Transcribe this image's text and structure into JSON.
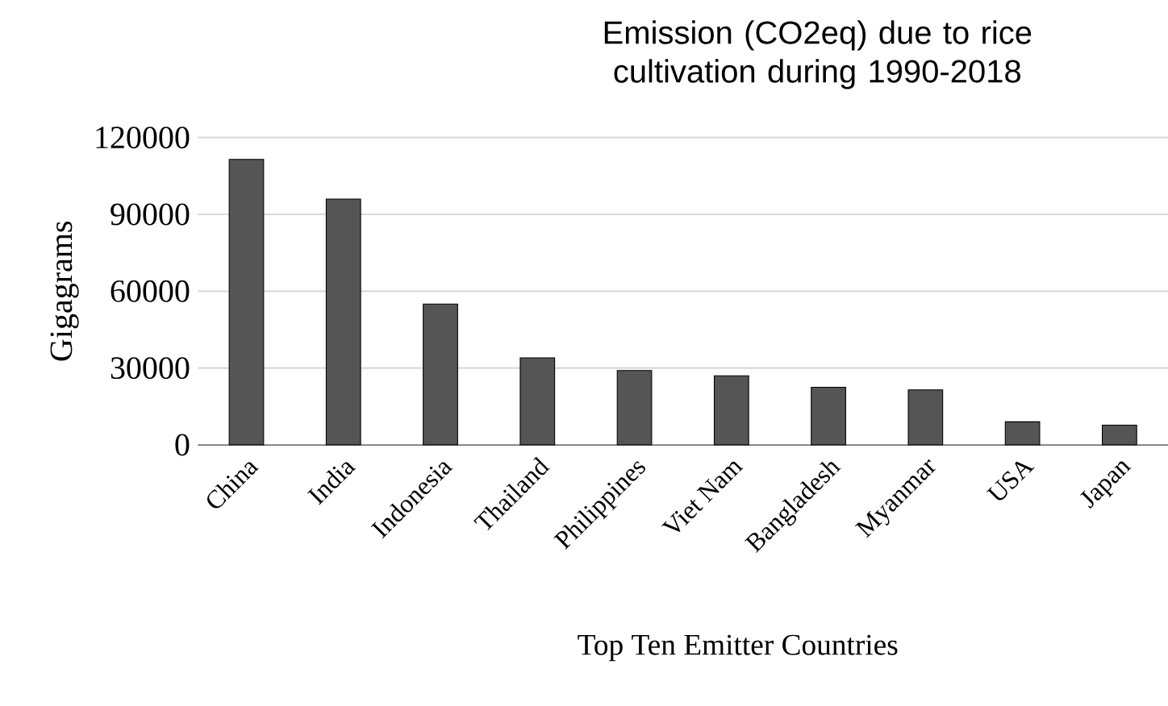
{
  "chart_data": {
    "type": "bar",
    "title": "Emission (CO2eq) due to rice cultivation during 1990-2018",
    "xlabel": "Top Ten Emitter Countries",
    "ylabel": "Gigagrams",
    "categories": [
      "China",
      "India",
      "Indonesia",
      "Thailand",
      "Philippines",
      "Viet Nam",
      "Bangladesh",
      "Myanmar",
      "USA",
      "Japan"
    ],
    "values": [
      111500,
      96000,
      55000,
      34000,
      29000,
      27000,
      22500,
      21500,
      9000,
      7700
    ],
    "color": "#555555",
    "ylim": [
      0,
      120000
    ],
    "yticks": [
      0,
      30000,
      60000,
      90000,
      120000
    ],
    "grid": "y"
  }
}
